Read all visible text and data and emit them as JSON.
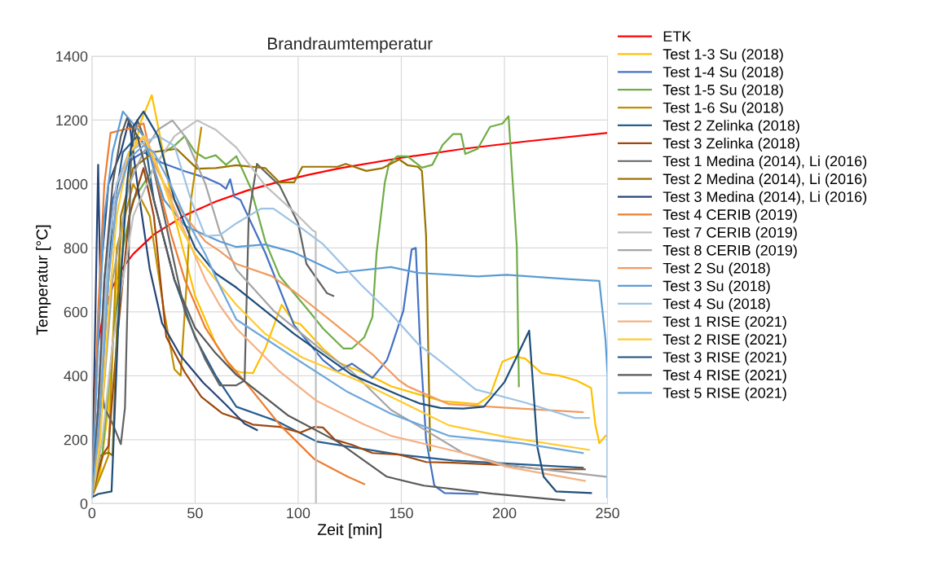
{
  "chart_data": {
    "type": "line",
    "title": "Brandraumtemperatur",
    "xlabel": "Zeit [min]",
    "ylabel": "Temperatur [°C]",
    "xlim": [
      0,
      250
    ],
    "ylim": [
      0,
      1400
    ],
    "xticks": [
      0,
      50,
      100,
      150,
      200,
      250
    ],
    "yticks": [
      0,
      200,
      400,
      600,
      800,
      1000,
      1200,
      1400
    ],
    "grid": true,
    "legend": "right",
    "marker": "none",
    "line_style": "solid",
    "series": [
      {
        "name": "ETK",
        "color": "#ff0000",
        "x": [
          1,
          3,
          5,
          10,
          15,
          20,
          30,
          45,
          60,
          75,
          90,
          105,
          120,
          150,
          180,
          210,
          250
        ],
        "values": [
          349,
          502,
          576,
          678,
          739,
          781,
          842,
          902,
          945,
          979,
          1006,
          1029,
          1049,
          1082,
          1110,
          1133,
          1160
        ]
      },
      {
        "name": "Test 1-3 Su (2018)",
        "color": "#ffc000",
        "x": [
          0,
          4,
          8,
          12,
          18,
          24,
          29,
          33,
          40,
          50,
          60,
          68,
          72,
          78,
          84,
          92,
          98,
          101,
          112,
          120,
          135,
          145,
          170,
          187,
          193,
          199,
          205,
          210,
          218,
          227,
          235,
          242,
          244,
          246,
          249
        ],
        "values": [
          20,
          100,
          300,
          700,
          1050,
          1200,
          1278,
          1150,
          900,
          650,
          500,
          420,
          411,
          408,
          485,
          622,
          567,
          562,
          485,
          440,
          400,
          367,
          320,
          311,
          338,
          444,
          460,
          454,
          408,
          400,
          385,
          362,
          250,
          189,
          212
        ]
      },
      {
        "name": "Test 1-4 Su (2018)",
        "color": "#4472c4",
        "x": [
          0,
          3,
          6,
          10,
          15,
          20,
          25,
          34,
          45,
          55,
          62,
          65,
          67,
          69,
          72,
          84,
          98,
          112,
          119,
          126,
          136,
          143,
          145,
          151,
          155,
          157,
          159,
          162,
          166,
          171,
          187
        ],
        "values": [
          20,
          300,
          700,
          950,
          1050,
          1080,
          1100,
          1066,
          1040,
          1020,
          1000,
          985,
          1015,
          960,
          950,
          785,
          558,
          449,
          413,
          438,
          393,
          449,
          485,
          604,
          795,
          800,
          513,
          201,
          56,
          33,
          30
        ]
      },
      {
        "name": "Test 1-5 Su (2018)",
        "color": "#70ad47",
        "x": [
          0,
          5,
          10,
          15,
          20,
          25,
          30,
          35,
          40,
          45,
          50,
          55,
          60,
          65,
          70,
          77,
          84,
          91,
          105,
          112,
          122,
          126,
          132,
          136,
          138,
          142,
          144,
          148,
          153,
          160,
          165,
          170,
          175,
          179,
          181,
          187,
          193,
          199,
          202,
          206,
          207
        ],
        "values": [
          20,
          150,
          500,
          800,
          950,
          1000,
          1050,
          1100,
          1120,
          1150,
          1100,
          1080,
          1090,
          1060,
          1087,
          987,
          821,
          712,
          604,
          548,
          485,
          485,
          520,
          584,
          785,
          1005,
          1063,
          1087,
          1087,
          1051,
          1060,
          1122,
          1156,
          1156,
          1094,
          1110,
          1179,
          1189,
          1212,
          804,
          367
        ]
      },
      {
        "name": "Test 1-6 Su (2018)",
        "color": "#bf9000",
        "x": [
          0,
          5,
          8,
          12,
          20,
          28,
          35,
          40,
          43,
          46,
          48,
          53
        ],
        "values": [
          20,
          100,
          150,
          800,
          1000,
          900,
          600,
          420,
          400,
          700,
          950,
          1176
        ]
      },
      {
        "name": "Test 2 Zelinka (2018)",
        "color": "#255e91",
        "x": [
          0,
          3,
          6,
          10,
          15,
          22,
          26,
          30,
          40,
          50,
          60,
          70,
          90,
          109,
          149,
          175,
          238
        ],
        "values": [
          20,
          150,
          500,
          900,
          1100,
          1150,
          1120,
          950,
          700,
          520,
          400,
          303,
          257,
          194,
          153,
          135,
          112
        ]
      },
      {
        "name": "Test 3 Zelinka (2018)",
        "color": "#9e480e",
        "x": [
          0,
          3,
          5.5,
          8,
          12,
          18,
          25,
          30,
          36,
          45,
          53,
          63,
          74,
          78,
          91,
          101,
          108,
          112,
          118,
          126,
          136,
          149,
          162,
          175,
          201,
          218,
          239
        ],
        "values": [
          20,
          100,
          155,
          180,
          500,
          900,
          1050,
          900,
          522,
          411,
          334,
          283,
          258,
          247,
          240,
          222,
          240,
          238,
          199,
          184,
          158,
          153,
          130,
          128,
          120,
          107,
          107
        ]
      },
      {
        "name": "Test 1 Medina (2014), Li (2016)",
        "color": "#636363",
        "x": [
          0,
          4,
          6,
          10,
          14,
          16,
          19,
          22,
          28,
          35,
          45,
          55,
          62,
          70,
          74,
          76,
          80,
          91,
          100,
          104,
          114,
          117
        ],
        "values": [
          20,
          400,
          300,
          250,
          186,
          300,
          1100,
          1200,
          1100,
          900,
          600,
          450,
          370,
          370,
          385,
          900,
          1063,
          995,
          877,
          750,
          658,
          650
        ]
      },
      {
        "name": "Test 2 Medina (2014), Li (2016)",
        "color": "#997300",
        "x": [
          0,
          4,
          8,
          10,
          14,
          20,
          30,
          41,
          51,
          60,
          70,
          84,
          91,
          98,
          102,
          119,
          123,
          133,
          141,
          149,
          153,
          158,
          160,
          162,
          164
        ],
        "values": [
          20,
          150,
          160,
          150,
          900,
          1050,
          1100,
          1110,
          1048,
          1050,
          1059,
          1050,
          1005,
          1005,
          1054,
          1054,
          1063,
          1041,
          1050,
          1077,
          1059,
          1054,
          1041,
          839,
          166
        ]
      },
      {
        "name": "Test 3 Medina (2014), Li (2016)",
        "color": "#264478",
        "x": [
          0,
          3,
          4,
          8,
          14,
          18,
          22,
          28,
          34,
          43,
          54,
          65,
          74,
          80
        ],
        "values": [
          20,
          1060,
          700,
          1000,
          1100,
          1200,
          1000,
          735,
          564,
          462,
          378,
          309,
          250,
          230
        ]
      },
      {
        "name": "Test 4 CERIB (2019)",
        "color": "#ed7d31",
        "x": [
          0,
          3,
          6,
          9,
          15,
          21,
          25,
          30,
          38,
          45,
          55,
          65,
          75,
          91,
          108,
          124,
          132
        ],
        "values": [
          20,
          600,
          1000,
          1160,
          1170,
          1176,
          1190,
          1050,
          850,
          700,
          550,
          450,
          375,
          247,
          138,
          84,
          61
        ]
      },
      {
        "name": "Test 7 CERIB (2019)",
        "color": "#bfbfbf",
        "x": [
          0,
          5,
          10,
          20,
          30,
          40,
          51,
          60,
          70,
          84,
          98,
          107,
          108.5,
          108.6
        ],
        "values": [
          20,
          200,
          500,
          900,
          1050,
          1150,
          1199,
          1170,
          1114,
          995,
          913,
          855,
          850,
          0
        ]
      },
      {
        "name": "Test 8 CERIB (2019)",
        "color": "#a5a5a5",
        "x": [
          0,
          5,
          10,
          18,
          25,
          32,
          39,
          45,
          55,
          62,
          70,
          88,
          112,
          126,
          145,
          159,
          180,
          201,
          249
        ],
        "values": [
          20,
          300,
          700,
          1000,
          1100,
          1170,
          1199,
          1150,
          1000,
          850,
          732,
          604,
          477,
          413,
          293,
          240,
          158,
          120,
          84
        ]
      },
      {
        "name": "Test 2 Su (2018)",
        "color": "#f19b5f",
        "x": [
          0,
          4,
          8,
          12,
          18,
          25,
          35,
          45,
          55,
          62,
          70,
          87,
          98,
          117,
          136,
          149,
          153,
          173,
          201,
          238
        ],
        "values": [
          20,
          300,
          800,
          1000,
          1100,
          1130,
          1000,
          900,
          820,
          790,
          750,
          712,
          664,
          566,
          467,
          385,
          367,
          311,
          300,
          286
        ]
      },
      {
        "name": "Test 3 Su (2018)",
        "color": "#5b9bd5",
        "x": [
          0,
          3,
          6,
          10,
          15,
          25,
          35,
          45,
          55,
          62,
          70,
          84,
          98,
          119,
          145,
          158,
          187,
          201,
          232,
          246,
          249,
          250,
          250
        ],
        "values": [
          20,
          500,
          900,
          1100,
          1227,
          1150,
          950,
          870,
          840,
          820,
          803,
          811,
          786,
          722,
          740,
          722,
          711,
          716,
          702,
          697,
          513,
          403,
          20
        ]
      },
      {
        "name": "Test 4 Su (2018)",
        "color": "#9dc3e6",
        "x": [
          0,
          4,
          8,
          12,
          18,
          25,
          32,
          40,
          48,
          55,
          62,
          70,
          82,
          88,
          102,
          112,
          131,
          145,
          158,
          170,
          186,
          210,
          234,
          241
        ],
        "values": [
          20,
          400,
          800,
          1000,
          1100,
          1130,
          1150,
          1120,
          950,
          837,
          840,
          877,
          923,
          923,
          860,
          812,
          681,
          594,
          500,
          440,
          357,
          316,
          268,
          268
        ]
      },
      {
        "name": "Test 1 RISE (2021)",
        "color": "#f4b183",
        "x": [
          0,
          4,
          8,
          12,
          18,
          26,
          35,
          45,
          55,
          62,
          70,
          91,
          109,
          132,
          145,
          180,
          201,
          239
        ],
        "values": [
          20,
          300,
          700,
          950,
          1100,
          1150,
          1000,
          850,
          700,
          620,
          548,
          413,
          321,
          247,
          212,
          158,
          115,
          71
        ]
      },
      {
        "name": "Test 2 RISE (2021)",
        "color": "#ffcb2f",
        "x": [
          0,
          4,
          8,
          12,
          18,
          25,
          32,
          40,
          50,
          60,
          70,
          84,
          102,
          129,
          145,
          173,
          201,
          241
        ],
        "values": [
          20,
          200,
          600,
          900,
          1100,
          1150,
          1050,
          900,
          780,
          700,
          622,
          531,
          457,
          385,
          334,
          245,
          208,
          168
        ]
      },
      {
        "name": "Test 3 RISE (2021)",
        "color": "#1f4e79",
        "x": [
          0,
          3,
          9.5,
          13,
          17,
          20,
          25,
          32,
          40,
          50,
          60,
          70,
          98,
          126,
          149,
          159,
          169,
          180,
          190,
          200,
          206,
          212,
          216,
          219,
          225,
          242
        ],
        "values": [
          20,
          30,
          38,
          600,
          1000,
          1180,
          1227,
          1150,
          950,
          800,
          720,
          676,
          531,
          403,
          339,
          313,
          299,
          297,
          303,
          380,
          460,
          541,
          176,
          84,
          38,
          33
        ]
      },
      {
        "name": "Test 4 RISE (2021)",
        "color": "#595959",
        "x": [
          0,
          3,
          6,
          10,
          14,
          17,
          22,
          30,
          40,
          50,
          60,
          70,
          95,
          119,
          143,
          161,
          194,
          229
        ],
        "values": [
          20,
          300,
          700,
          1000,
          1150,
          1206,
          1150,
          950,
          700,
          550,
          470,
          403,
          276,
          194,
          84,
          56,
          31,
          10
        ]
      },
      {
        "name": "Test 5 RISE (2021)",
        "color": "#6fa8dc",
        "x": [
          0,
          4,
          8,
          12,
          18,
          25,
          30,
          38,
          45,
          55,
          62,
          70,
          98,
          124,
          145,
          173,
          208,
          238
        ],
        "values": [
          20,
          300,
          700,
          950,
          1080,
          1120,
          1100,
          1000,
          900,
          780,
          680,
          576,
          457,
          349,
          281,
          212,
          189,
          158
        ]
      }
    ]
  }
}
